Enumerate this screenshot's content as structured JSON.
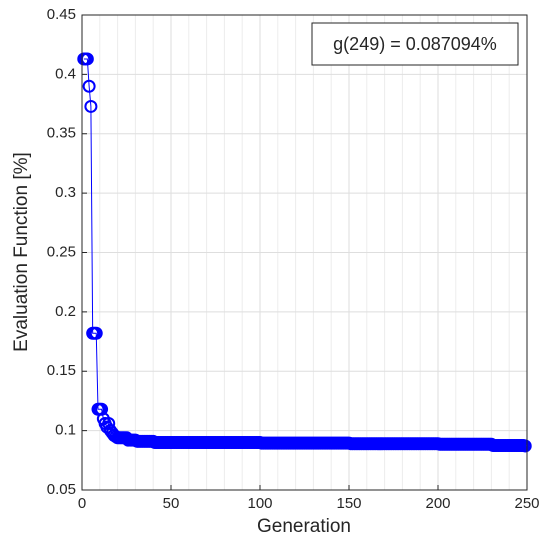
{
  "chart_data": {
    "type": "line",
    "xlabel": "Generation",
    "ylabel": "Evaluation Function [%]",
    "annotation": "g(249) = 0.087094%",
    "xlim": [
      0,
      250
    ],
    "ylim": [
      0.05,
      0.45
    ],
    "xticks": [
      0,
      50,
      100,
      150,
      200,
      250
    ],
    "xminorticks": [
      10,
      20,
      30,
      40,
      60,
      70,
      80,
      90,
      110,
      120,
      130,
      140,
      160,
      170,
      180,
      190,
      210,
      220,
      230,
      240
    ],
    "yticks": [
      0.05,
      0.1,
      0.15,
      0.2,
      0.25,
      0.3,
      0.35,
      0.4,
      0.45
    ],
    "grid": true,
    "marker": "circle",
    "x": [
      1,
      2,
      3,
      4,
      5,
      6,
      7,
      8,
      9,
      10,
      11,
      12,
      13,
      14,
      15,
      16,
      17,
      18,
      19,
      20,
      21,
      22,
      23,
      24,
      25,
      26,
      27,
      28,
      29,
      30,
      31,
      32,
      33,
      34,
      35,
      36,
      37,
      38,
      39,
      40,
      41,
      42,
      43,
      44,
      45,
      46,
      47,
      48,
      49,
      50,
      51,
      52,
      53,
      54,
      55,
      56,
      57,
      58,
      59,
      60,
      61,
      62,
      63,
      64,
      65,
      66,
      67,
      68,
      69,
      70,
      71,
      72,
      73,
      74,
      75,
      76,
      77,
      78,
      79,
      80,
      81,
      82,
      83,
      84,
      85,
      86,
      87,
      88,
      89,
      90,
      91,
      92,
      93,
      94,
      95,
      96,
      97,
      98,
      99,
      100,
      101,
      102,
      103,
      104,
      105,
      106,
      107,
      108,
      109,
      110,
      111,
      112,
      113,
      114,
      115,
      116,
      117,
      118,
      119,
      120,
      121,
      122,
      123,
      124,
      125,
      126,
      127,
      128,
      129,
      130,
      131,
      132,
      133,
      134,
      135,
      136,
      137,
      138,
      139,
      140,
      141,
      142,
      143,
      144,
      145,
      146,
      147,
      148,
      149,
      150,
      151,
      152,
      153,
      154,
      155,
      156,
      157,
      158,
      159,
      160,
      161,
      162,
      163,
      164,
      165,
      166,
      167,
      168,
      169,
      170,
      171,
      172,
      173,
      174,
      175,
      176,
      177,
      178,
      179,
      180,
      181,
      182,
      183,
      184,
      185,
      186,
      187,
      188,
      189,
      190,
      191,
      192,
      193,
      194,
      195,
      196,
      197,
      198,
      199,
      200,
      201,
      202,
      203,
      204,
      205,
      206,
      207,
      208,
      209,
      210,
      211,
      212,
      213,
      214,
      215,
      216,
      217,
      218,
      219,
      220,
      221,
      222,
      223,
      224,
      225,
      226,
      227,
      228,
      229,
      230,
      231,
      232,
      233,
      234,
      235,
      236,
      237,
      238,
      239,
      240,
      241,
      242,
      243,
      244,
      245,
      246,
      247,
      248,
      249
    ],
    "series": [
      {
        "name": "g",
        "color": "#0000ff",
        "values": [
          0.413,
          0.413,
          0.413,
          0.39,
          0.373,
          0.182,
          0.182,
          0.182,
          0.118,
          0.118,
          0.118,
          0.11,
          0.106,
          0.103,
          0.106,
          0.1,
          0.098,
          0.096,
          0.095,
          0.094,
          0.094,
          0.094,
          0.094,
          0.094,
          0.094,
          0.092,
          0.092,
          0.092,
          0.092,
          0.092,
          0.091,
          0.091,
          0.091,
          0.091,
          0.091,
          0.091,
          0.091,
          0.091,
          0.091,
          0.091,
          0.09,
          0.09,
          0.09,
          0.09,
          0.09,
          0.09,
          0.09,
          0.09,
          0.09,
          0.09,
          0.09,
          0.09,
          0.09,
          0.09,
          0.09,
          0.09,
          0.09,
          0.09,
          0.09,
          0.09,
          0.09,
          0.09,
          0.09,
          0.09,
          0.09,
          0.09,
          0.09,
          0.09,
          0.09,
          0.09,
          0.09,
          0.09,
          0.09,
          0.09,
          0.09,
          0.09,
          0.09,
          0.09,
          0.09,
          0.09,
          0.09,
          0.09,
          0.09,
          0.09,
          0.09,
          0.09,
          0.09,
          0.09,
          0.09,
          0.09,
          0.09,
          0.09,
          0.09,
          0.09,
          0.09,
          0.09,
          0.09,
          0.09,
          0.09,
          0.09,
          0.0895,
          0.0895,
          0.0895,
          0.0895,
          0.0895,
          0.0895,
          0.0895,
          0.0895,
          0.0895,
          0.0895,
          0.0895,
          0.0895,
          0.0895,
          0.0895,
          0.0895,
          0.0895,
          0.0895,
          0.0895,
          0.0895,
          0.0895,
          0.0895,
          0.0895,
          0.0895,
          0.0895,
          0.0895,
          0.0895,
          0.0895,
          0.0895,
          0.0895,
          0.0895,
          0.0895,
          0.0895,
          0.0895,
          0.0895,
          0.0895,
          0.0895,
          0.0895,
          0.0895,
          0.0895,
          0.0895,
          0.0895,
          0.0895,
          0.0895,
          0.0895,
          0.0895,
          0.0895,
          0.0895,
          0.0895,
          0.0895,
          0.0895,
          0.089,
          0.089,
          0.089,
          0.089,
          0.089,
          0.089,
          0.089,
          0.089,
          0.089,
          0.089,
          0.089,
          0.089,
          0.089,
          0.089,
          0.089,
          0.089,
          0.089,
          0.089,
          0.089,
          0.089,
          0.089,
          0.089,
          0.089,
          0.089,
          0.089,
          0.089,
          0.089,
          0.089,
          0.089,
          0.089,
          0.089,
          0.089,
          0.089,
          0.089,
          0.089,
          0.089,
          0.089,
          0.089,
          0.089,
          0.089,
          0.089,
          0.089,
          0.089,
          0.089,
          0.089,
          0.089,
          0.089,
          0.089,
          0.089,
          0.089,
          0.0885,
          0.0885,
          0.0885,
          0.0885,
          0.0885,
          0.0885,
          0.0885,
          0.0885,
          0.0885,
          0.0885,
          0.0885,
          0.0885,
          0.0885,
          0.0885,
          0.0885,
          0.0885,
          0.0885,
          0.0885,
          0.0885,
          0.0885,
          0.0885,
          0.0885,
          0.0885,
          0.0885,
          0.0885,
          0.0885,
          0.0885,
          0.0885,
          0.0885,
          0.0885,
          0.0875,
          0.0875,
          0.0875,
          0.0875,
          0.0875,
          0.0875,
          0.0875,
          0.0875,
          0.0875,
          0.0875,
          0.0875,
          0.0875,
          0.0875,
          0.0875,
          0.0875,
          0.0875,
          0.0875,
          0.0875,
          0.087094
        ]
      }
    ]
  }
}
